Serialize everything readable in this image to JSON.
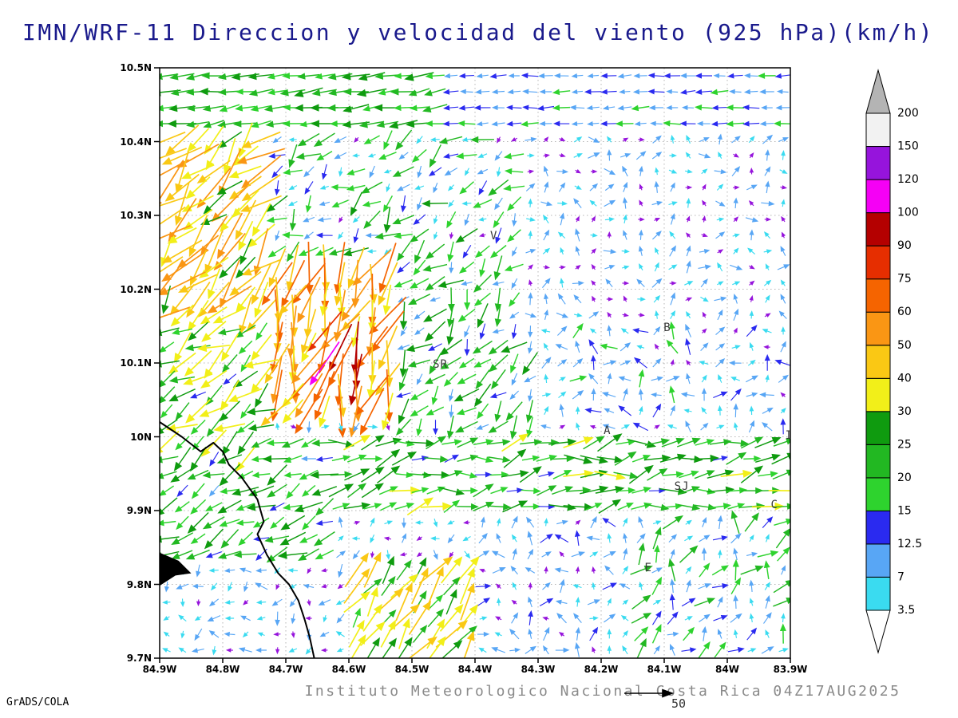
{
  "title": "IMN/WRF-11 Direccion y velocidad del viento (925 hPa)(km/h)",
  "footer": {
    "caption": "Instituto Meteorologico Nacional Costa Rica 04Z17AUG2025",
    "credit": "GrADS/COLA",
    "vector_key": {
      "value": "50"
    }
  },
  "chart_data": {
    "type": "vector_field_map",
    "variable": "wind direction and speed at 925 hPa",
    "units": "km/h",
    "x_axis": {
      "ticks": [
        "84.9W",
        "84.8W",
        "84.7W",
        "84.6W",
        "84.5W",
        "84.4W",
        "84.3W",
        "84.2W",
        "84.1W",
        "84W",
        "83.9W"
      ],
      "range_w": [
        84.9,
        83.9
      ]
    },
    "y_axis": {
      "ticks": [
        "10.5N",
        "10.4N",
        "10.3N",
        "10.2N",
        "10.1N",
        "10N",
        "9.9N",
        "9.8N",
        "9.7N"
      ],
      "range_n": [
        9.7,
        10.5
      ]
    },
    "grid": {
      "step_deg": 0.1,
      "style": "dotted"
    },
    "colorbar": {
      "levels": [
        3.5,
        7,
        12.5,
        15,
        20,
        25,
        30,
        40,
        50,
        60,
        75,
        90,
        100,
        120,
        150,
        200
      ],
      "colors": [
        "#3adbf0",
        "#58a6f5",
        "#2a2af0",
        "#2ed32e",
        "#22b822",
        "#0f9b0f",
        "#f2ef19",
        "#fac814",
        "#fa9614",
        "#f56400",
        "#e62e00",
        "#b40000",
        "#f500f5",
        "#9614dc",
        "#f2f2f2"
      ],
      "under_color": "#ffffff",
      "over_color": "#b4b4b4"
    },
    "stations": [
      {
        "label": "V",
        "lon_w": 84.37,
        "lat_n": 10.272
      },
      {
        "label": "B",
        "lon_w": 84.095,
        "lat_n": 10.148
      },
      {
        "label": "SR",
        "lon_w": 84.455,
        "lat_n": 10.098
      },
      {
        "label": "A",
        "lon_w": 84.19,
        "lat_n": 10.008
      },
      {
        "label": "I",
        "lon_w": 83.902,
        "lat_n": 10.002
      },
      {
        "label": "SJ",
        "lon_w": 84.072,
        "lat_n": 9.932
      },
      {
        "label": "C",
        "lon_w": 83.925,
        "lat_n": 9.908
      },
      {
        "label": "E",
        "lon_w": 84.125,
        "lat_n": 9.822
      }
    ],
    "coastline": {
      "main": [
        [
          84.9,
          10.02
        ],
        [
          84.865,
          10.0
        ],
        [
          84.835,
          9.98
        ],
        [
          84.815,
          9.992
        ],
        [
          84.8,
          9.98
        ],
        [
          84.79,
          9.962
        ],
        [
          84.77,
          9.945
        ],
        [
          84.745,
          9.915
        ],
        [
          84.735,
          9.885
        ],
        [
          84.745,
          9.868
        ],
        [
          84.73,
          9.84
        ],
        [
          84.712,
          9.815
        ],
        [
          84.695,
          9.8
        ],
        [
          84.68,
          9.778
        ],
        [
          84.67,
          9.752
        ],
        [
          84.662,
          9.728
        ],
        [
          84.655,
          9.7
        ]
      ],
      "islet": [
        [
          84.9,
          9.843
        ],
        [
          84.87,
          9.832
        ],
        [
          84.85,
          9.815
        ],
        [
          84.875,
          9.812
        ],
        [
          84.9,
          9.798
        ]
      ]
    },
    "flow_regions": [
      {
        "name": "jet_max",
        "w": [
          84.65,
          84.58
        ],
        "n": [
          10.06,
          10.14
        ],
        "dir": 255,
        "spread": 20,
        "spd": [
          62,
          103
        ]
      },
      {
        "name": "jet_core",
        "w": [
          84.73,
          84.53
        ],
        "n": [
          10.02,
          10.24
        ],
        "dir": 250,
        "spread": 28,
        "spd": [
          30,
          76
        ]
      },
      {
        "name": "nw_strong",
        "w": [
          84.92,
          84.73
        ],
        "n": [
          10.15,
          10.42
        ],
        "dir": 226,
        "spread": 30,
        "spd": [
          26,
          56
        ]
      },
      {
        "name": "top_left",
        "w": [
          84.92,
          84.45
        ],
        "n": [
          10.42,
          10.52
        ],
        "dir": 188,
        "spread": 10,
        "spd": [
          15,
          30
        ]
      },
      {
        "name": "top_right",
        "w": [
          84.45,
          83.85
        ],
        "n": [
          10.42,
          10.52
        ],
        "dir": 182,
        "spread": 7,
        "spd": [
          8,
          16
        ]
      },
      {
        "name": "north_center",
        "w": [
          84.73,
          84.33
        ],
        "n": [
          10.24,
          10.42
        ],
        "dir": 220,
        "spread": 45,
        "spd": [
          3,
          26
        ]
      },
      {
        "name": "ne_calm",
        "w": [
          84.33,
          83.85
        ],
        "n": [
          10.16,
          10.42
        ],
        "dir": 55,
        "spread": 85,
        "spd": [
          1.5,
          11
        ]
      },
      {
        "name": "west_mid",
        "w": [
          84.92,
          84.73
        ],
        "n": [
          9.97,
          10.15
        ],
        "dir": 212,
        "spread": 30,
        "spd": [
          14,
          38
        ]
      },
      {
        "name": "center_mid",
        "w": [
          84.53,
          84.3
        ],
        "n": [
          10.0,
          10.24
        ],
        "dir": 232,
        "spread": 40,
        "spd": [
          8,
          28
        ]
      },
      {
        "name": "east_mid",
        "w": [
          84.3,
          83.85
        ],
        "n": [
          10.0,
          10.16
        ],
        "dir": 95,
        "spread": 85,
        "spd": [
          2,
          16
        ]
      },
      {
        "name": "valley",
        "w": [
          84.62,
          83.85
        ],
        "n": [
          9.885,
          10.0
        ],
        "dir": 12,
        "spread": 28,
        "spd": [
          13,
          32
        ]
      },
      {
        "name": "coastal_sw",
        "w": [
          84.92,
          84.62
        ],
        "n": [
          9.82,
          10.0
        ],
        "dir": 205,
        "spread": 25,
        "spd": [
          12,
          30
        ]
      },
      {
        "name": "sw_calm",
        "w": [
          84.92,
          84.6
        ],
        "n": [
          9.66,
          9.82
        ],
        "dir": 210,
        "spread": 70,
        "spd": [
          2,
          12
        ]
      },
      {
        "name": "south_updraft",
        "w": [
          84.62,
          84.4
        ],
        "n": [
          9.66,
          9.84
        ],
        "dir": 55,
        "spread": 18,
        "spd": [
          18,
          45
        ]
      },
      {
        "name": "south_calm",
        "w": [
          84.4,
          84.14
        ],
        "n": [
          9.66,
          9.885
        ],
        "dir": 85,
        "spread": 85,
        "spd": [
          2,
          14
        ]
      },
      {
        "name": "se_mixed",
        "w": [
          84.14,
          83.85
        ],
        "n": [
          9.66,
          9.885
        ],
        "dir": 60,
        "spread": 55,
        "spd": [
          4,
          24
        ]
      }
    ],
    "default_flow": {
      "dir": 90,
      "spread": 180,
      "spd": [
        1.5,
        9
      ]
    },
    "vector_grid": {
      "cols": 40,
      "rows": 37,
      "seed": 11
    },
    "vector_key": {
      "speed": 50
    }
  }
}
